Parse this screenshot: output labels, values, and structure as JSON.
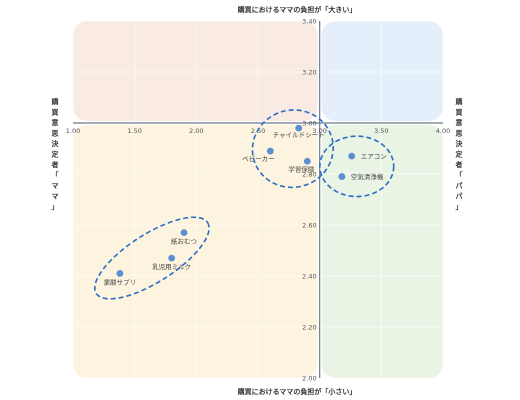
{
  "chart_data": {
    "type": "scatter",
    "title_top": "購買におけるママの負担が「大きい」",
    "title_bottom": "購買におけるママの負担が「小さい」",
    "label_left": "購買意思決定者「ママ」",
    "label_right": "購買意思決定者「パパ」",
    "xlim": [
      1.0,
      4.0
    ],
    "ylim": [
      2.0,
      3.4
    ],
    "x_ticks": [
      "1.00",
      "1.50",
      "2.00",
      "2.50",
      "3.00",
      "3.50",
      "4.00"
    ],
    "y_ticks": [
      "2.00",
      "2.20",
      "2.40",
      "2.60",
      "2.80",
      "3.00",
      "3.20",
      "3.40"
    ],
    "quadrant_split": {
      "x": 3.0,
      "y": 3.0
    },
    "grid": true,
    "points": [
      {
        "label": "チャイルドシート",
        "x": 2.83,
        "y": 2.98
      },
      {
        "label": "ベビーカー",
        "x": 2.6,
        "y": 2.89
      },
      {
        "label": "学習保険",
        "x": 2.9,
        "y": 2.85
      },
      {
        "label": "エアコン",
        "x": 3.26,
        "y": 2.87
      },
      {
        "label": "空気清浄機",
        "x": 3.18,
        "y": 2.79
      },
      {
        "label": "紙おむつ",
        "x": 1.9,
        "y": 2.57
      },
      {
        "label": "乳児用ミルク",
        "x": 1.8,
        "y": 2.47
      },
      {
        "label": "業酸サプリ",
        "x": 1.38,
        "y": 2.41
      }
    ],
    "colors": {
      "point": "#5b8fd0",
      "ellipse": "#2b6cc4",
      "q_top_left": "#f9ebe3",
      "q_top_right": "#e5effb",
      "q_bottom_left": "#fdf4df",
      "q_bottom_right": "#e9f4e4",
      "axis": "#6b7b8c"
    }
  }
}
